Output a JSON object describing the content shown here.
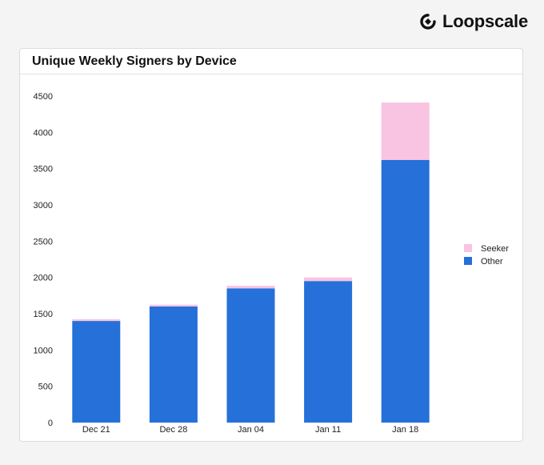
{
  "brand": {
    "name": "Loopscale",
    "icon": "loopscale-logo-icon"
  },
  "colors": {
    "other": "#2570d9",
    "seeker": "#f9c3e2"
  },
  "chart_data": {
    "type": "bar",
    "stacked": true,
    "title": "Unique Weekly Signers by Device",
    "xlabel": "",
    "ylabel": "",
    "categories": [
      "Dec 21",
      "Dec 28",
      "Jan 04",
      "Jan 11",
      "Jan 18"
    ],
    "series": [
      {
        "name": "Other",
        "values": [
          1400,
          1600,
          1850,
          1950,
          3620
        ]
      },
      {
        "name": "Seeker",
        "values": [
          25,
          25,
          35,
          50,
          790
        ]
      }
    ],
    "ylim": [
      0,
      4500
    ],
    "yticks": [
      0,
      500,
      1000,
      1500,
      2000,
      2500,
      3000,
      3500,
      4000,
      4500
    ],
    "legend_order": [
      "Seeker",
      "Other"
    ],
    "legend_position": "right",
    "grid": false
  }
}
